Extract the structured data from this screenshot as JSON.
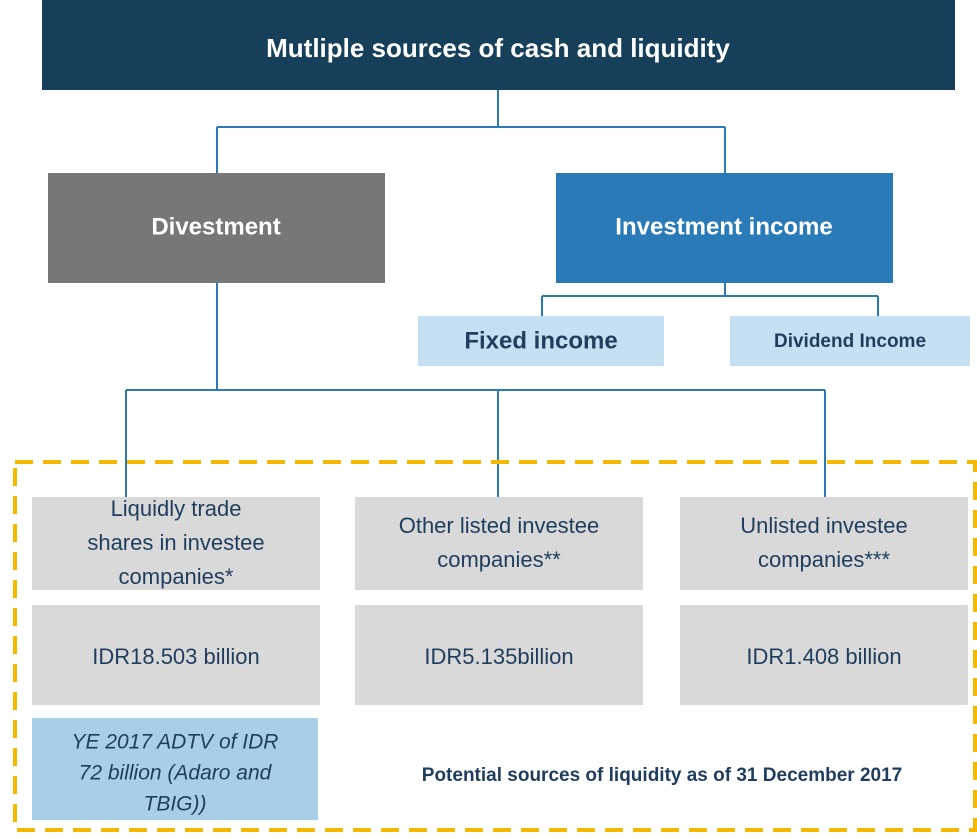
{
  "title": "Mutliple sources of cash and liquidity",
  "nodes": [
    {
      "label": "Divestment"
    },
    {
      "label": "Investment income"
    },
    {
      "label": "Fixed income"
    },
    {
      "label": "Dividend Income"
    }
  ],
  "investees": [
    {
      "lines": [
        "Liquidly trade",
        "shares in investee",
        "companies*"
      ],
      "value": "IDR18.503 billion"
    },
    {
      "lines": [
        "Other listed investee",
        "companies**"
      ],
      "value": "IDR5.135billion"
    },
    {
      "lines": [
        "Unlisted investee",
        "companies***"
      ],
      "value": "IDR1.408 billion"
    }
  ],
  "note": {
    "lines": [
      "YE 2017 ADTV of IDR",
      "72 billion (Adaro and",
      "TBIG))"
    ]
  },
  "footer": "Potential sources of liquidity as of 31 December 2017"
}
